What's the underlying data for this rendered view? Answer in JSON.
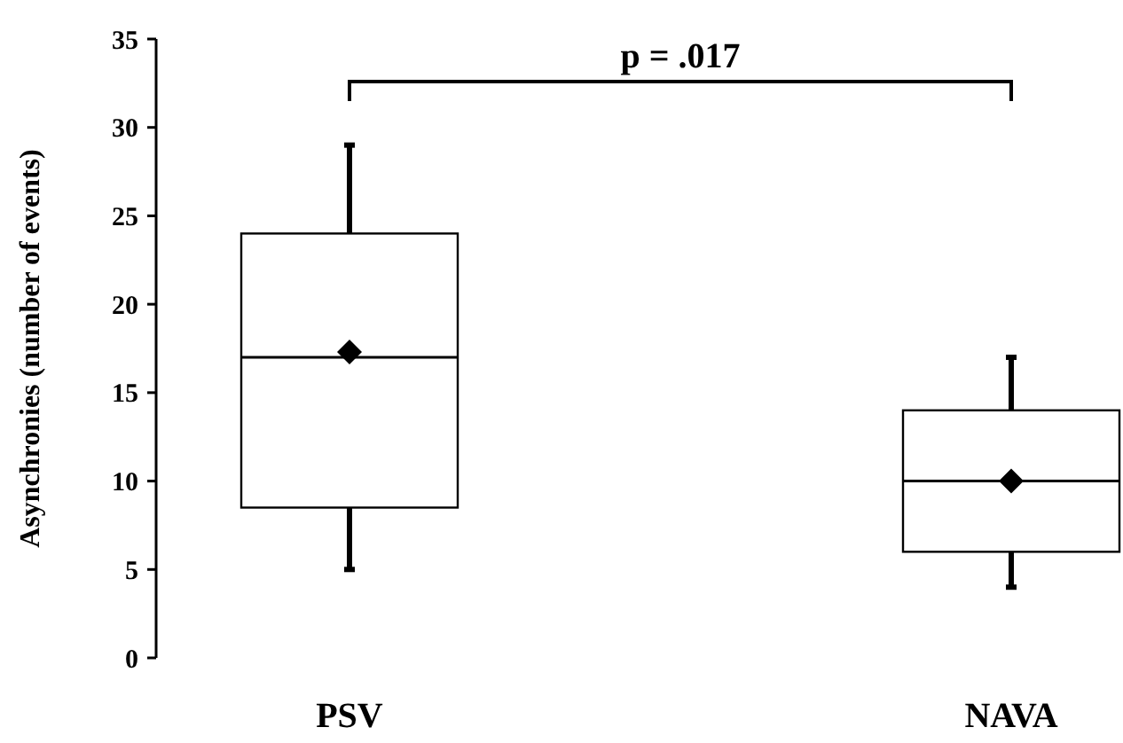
{
  "chart_data": {
    "type": "box",
    "ylabel": "Asynchronies (number of events)",
    "categories": [
      "PSV",
      "NAVA"
    ],
    "boxes": [
      {
        "low": 5,
        "q1": 8.5,
        "median": 17,
        "q3": 24,
        "high": 29,
        "mean": 17.3
      },
      {
        "low": 4,
        "q1": 6,
        "median": 10,
        "q3": 14,
        "high": 17,
        "mean": 10
      }
    ],
    "ylim": [
      0,
      35
    ],
    "yticks": [
      0,
      5,
      10,
      15,
      20,
      25,
      30,
      35
    ],
    "grid": false,
    "marker": "diamond",
    "annotations": [
      "p = .017"
    ]
  }
}
